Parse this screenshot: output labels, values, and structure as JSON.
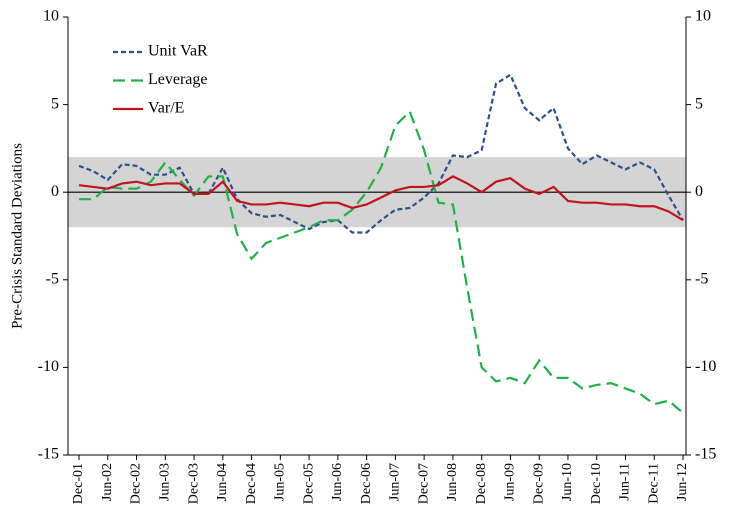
{
  "chart_data": {
    "type": "line",
    "y_label": "Pre-Crisis Standard Deviations",
    "categories": [
      "Dec-01",
      null,
      "Jun-02",
      null,
      "Dec-02",
      null,
      "Jun-03",
      null,
      "Dec-03",
      null,
      "Jun-04",
      null,
      "Dec-04",
      null,
      "Jun-05",
      null,
      "Dec-05",
      null,
      "Jun-06",
      null,
      "Dec-06",
      null,
      "Jun-07",
      null,
      "Dec-07",
      null,
      "Jun-08",
      null,
      "Dec-08",
      null,
      "Jun-09",
      null,
      "Dec-09",
      null,
      "Jun-10",
      null,
      "Dec-10",
      null,
      "Jun-11",
      null,
      "Dec-11",
      null,
      "Jun-12"
    ],
    "series": [
      {
        "name": "Unit VaR",
        "color": "#2f4f8a",
        "dash": "short",
        "values": [
          1.5,
          1.2,
          0.7,
          1.6,
          1.5,
          1.0,
          1.0,
          1.4,
          -0.1,
          -0.1,
          1.4,
          -0.4,
          -1.2,
          -1.4,
          -1.3,
          -1.7,
          -2.1,
          -1.7,
          -1.6,
          -2.3,
          -2.3,
          -1.6,
          -1.0,
          -0.9,
          -0.3,
          0.5,
          2.1,
          2.0,
          2.4,
          6.2,
          6.7,
          4.8,
          4.1,
          4.8,
          2.5,
          1.6,
          2.1,
          1.7,
          1.3,
          1.7,
          1.3,
          -0.2,
          -1.6
        ]
      },
      {
        "name": "Leverage",
        "color": "#22b04a",
        "dash": "long",
        "values": [
          -0.4,
          -0.4,
          0.3,
          0.2,
          0.2,
          0.6,
          1.7,
          0.7,
          -0.2,
          0.9,
          0.9,
          -2.4,
          -3.8,
          -2.9,
          -2.6,
          -2.3,
          -2.0,
          -1.6,
          -1.6,
          -1.0,
          0.0,
          1.4,
          3.8,
          4.6,
          2.4,
          -0.6,
          -0.7,
          -5.5,
          -10.0,
          -10.8,
          -10.6,
          -10.9,
          -9.6,
          -10.6,
          -10.6,
          -11.2,
          -11.0,
          -10.9,
          -11.2,
          -11.5,
          -12.1,
          -11.9,
          -12.6
        ]
      },
      {
        "name": "Var/E",
        "color": "#c0141c",
        "dash": "solid",
        "values": [
          0.4,
          0.3,
          0.2,
          0.5,
          0.6,
          0.4,
          0.5,
          0.5,
          -0.1,
          -0.1,
          0.6,
          -0.5,
          -0.7,
          -0.7,
          -0.6,
          -0.7,
          -0.8,
          -0.6,
          -0.6,
          -0.9,
          -0.7,
          -0.3,
          0.1,
          0.3,
          0.3,
          0.4,
          0.9,
          0.5,
          0.0,
          0.6,
          0.8,
          0.2,
          -0.1,
          0.3,
          -0.5,
          -0.6,
          -0.6,
          -0.7,
          -0.7,
          -0.8,
          -0.8,
          -1.1,
          -1.6
        ]
      }
    ],
    "band": {
      "from": -2,
      "to": 2,
      "color": "#d4d4d4"
    },
    "ylim": [
      -15,
      10
    ],
    "yticks": [
      -15,
      -10,
      -5,
      0,
      5,
      10
    ],
    "y2lim": [
      -15,
      10
    ],
    "y2ticks": [
      -15,
      -10,
      -5,
      0,
      5,
      10
    ],
    "legend": "top-left"
  }
}
